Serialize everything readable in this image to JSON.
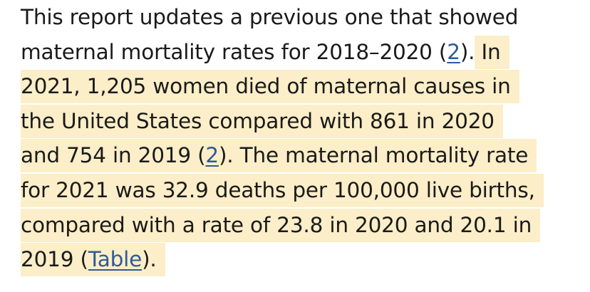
{
  "paragraph": {
    "line1": "This report updates a previous one that showed",
    "line2_plain": "maternal mortality rates for 2018–2020 (",
    "line2_ref": "2",
    "line2_after_ref": ").",
    "line2_hl": " In",
    "line3": "2021, 1,205 women died of maternal causes in",
    "line4": "the United States compared with 861 in 2020",
    "line5_before_ref": "and 754 in 2019 (",
    "line5_ref": "2",
    "line5_after_ref": "). The maternal mortality rate",
    "line6": "for 2021 was 32.9 deaths per 100,000 live births,",
    "line7": "compared with a rate of 23.8 in 2020 and 20.1 in",
    "line8_before_ref": "2019 (",
    "line8_ref": "Table",
    "line8_after_ref": ")."
  },
  "colors": {
    "highlight": "#fbeec8",
    "link": "#2d5a99",
    "text": "#1a1a1a"
  }
}
